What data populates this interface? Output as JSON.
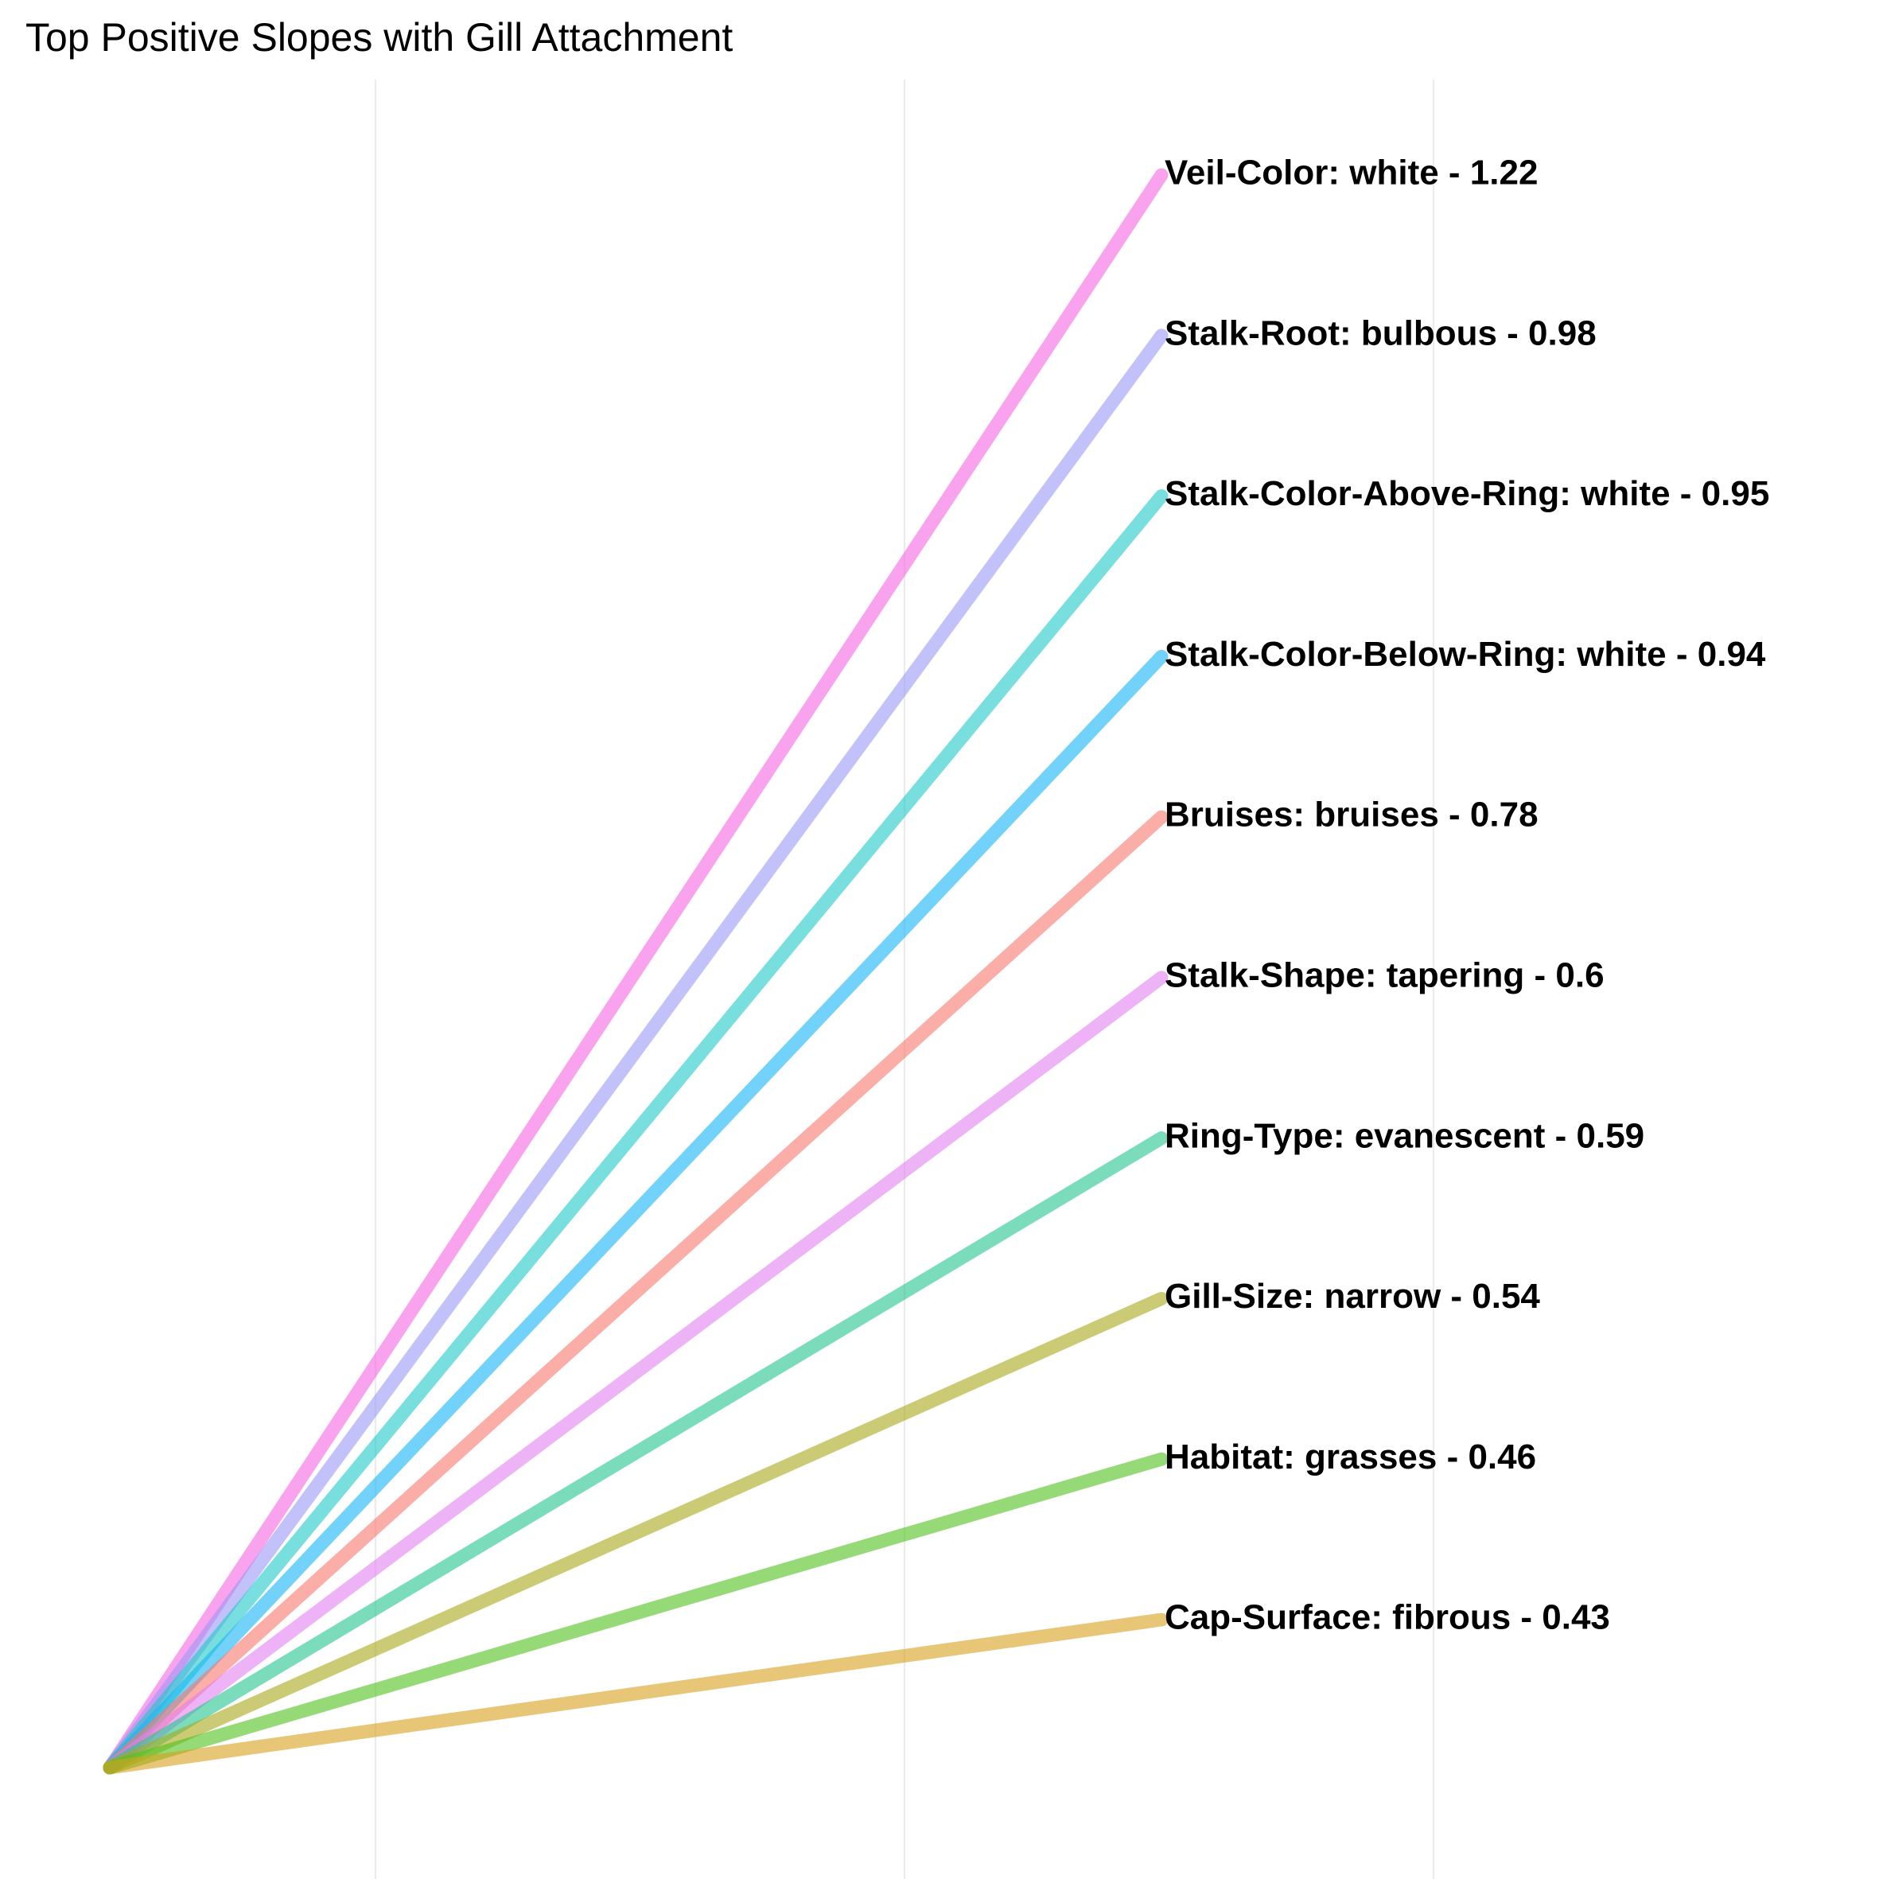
{
  "chart_data": {
    "type": "line",
    "title": "Top Positive Slopes with Gill Attachment",
    "xlabel": "",
    "ylabel": "",
    "ylim": [
      0,
      1.22
    ],
    "grid": "vertical",
    "legend": "none",
    "series": [
      {
        "label": "Veil-Color: white - 1.22",
        "slope": 1.22,
        "color": "#f564e3"
      },
      {
        "label": "Stalk-Root: bulbous - 0.98",
        "slope": 0.98,
        "color": "#9b98f5"
      },
      {
        "label": "Stalk-Color-Above-Ring: white - 0.95",
        "slope": 0.95,
        "color": "#1fc8c8"
      },
      {
        "label": "Stalk-Color-Below-Ring: white - 0.94",
        "slope": 0.94,
        "color": "#15b4f5"
      },
      {
        "label": "Bruises: bruises - 0.78",
        "slope": 0.78,
        "color": "#f8766d"
      },
      {
        "label": "Stalk-Shape: tapering - 0.6",
        "slope": 0.6,
        "color": "#e37ef0"
      },
      {
        "label": "Ring-Type: evanescent - 0.59",
        "slope": 0.59,
        "color": "#23c48f"
      },
      {
        "label": "Gill-Size: narrow - 0.54",
        "slope": 0.54,
        "color": "#a8a81a"
      },
      {
        "label": "Habitat: grasses - 0.46",
        "slope": 0.46,
        "color": "#4ec11c"
      },
      {
        "label": "Cap-Surface: fibrous - 0.43",
        "slope": 0.43,
        "color": "#d9a01c"
      }
    ]
  }
}
